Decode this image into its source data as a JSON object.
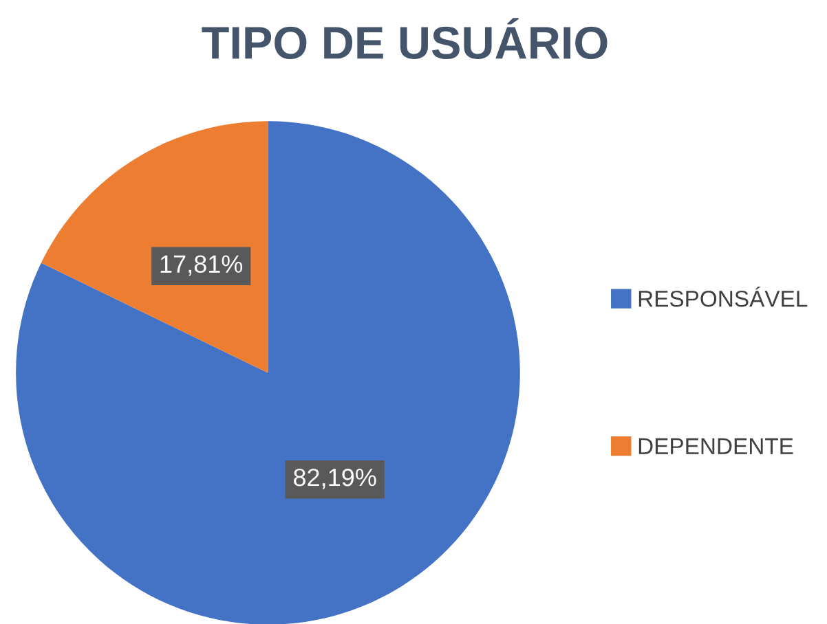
{
  "chart_data": {
    "type": "pie",
    "title": "TIPO DE USUÁRIO",
    "categories": [
      "RESPONSÁVEL",
      "DEPENDENTE"
    ],
    "values": [
      82.19,
      17.81
    ],
    "colors": [
      "#4472c4",
      "#ed7d31"
    ],
    "value_labels": [
      "82,19%",
      "17,81%"
    ],
    "legend": "right"
  }
}
